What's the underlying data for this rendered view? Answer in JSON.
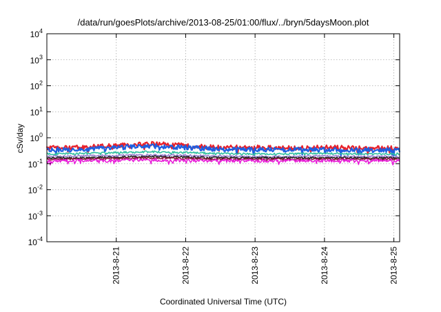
{
  "chart_data": {
    "type": "line",
    "title": "/data/run/goesPlots/archive/2013-08-25/01:00/flux/../bryn/5daysMoon.plot",
    "xlabel": "Coordinated Universal Time (UTC)",
    "ylabel": "cSv/day",
    "x_range": [
      "2013-08-20 00:00",
      "2013-08-25 02:00"
    ],
    "x_ticks": [
      "2013-8-21",
      "2013-8-22",
      "2013-8-23",
      "2013-8-24",
      "2013-8-25"
    ],
    "y_scale": "log",
    "ylim": [
      0.0001,
      10000
    ],
    "y_ticks": [
      {
        "base": "10",
        "exp": "-4"
      },
      {
        "base": "10",
        "exp": "-3"
      },
      {
        "base": "10",
        "exp": "-2"
      },
      {
        "base": "10",
        "exp": "-1"
      },
      {
        "base": "10",
        "exp": "0"
      },
      {
        "base": "10",
        "exp": "1"
      },
      {
        "base": "10",
        "exp": "2"
      },
      {
        "base": "10",
        "exp": "3"
      },
      {
        "base": "10",
        "exp": "4"
      }
    ],
    "grid": true,
    "series": [
      {
        "color": "#e8202a",
        "x": [
          "2013-08-20 00:00",
          "2013-08-20 12:00",
          "2013-08-21 00:00",
          "2013-08-21 12:00",
          "2013-08-22 00:00",
          "2013-08-22 12:00",
          "2013-08-23 00:00",
          "2013-08-23 12:00",
          "2013-08-24 00:00",
          "2013-08-24 12:00",
          "2013-08-25 00:00",
          "2013-08-25 02:00"
        ],
        "y": [
          0.4,
          0.42,
          0.5,
          0.58,
          0.5,
          0.42,
          0.42,
          0.4,
          0.42,
          0.4,
          0.4,
          0.4
        ]
      },
      {
        "color": "#1f5fe0",
        "x": [
          "2013-08-20 00:00",
          "2013-08-20 12:00",
          "2013-08-21 00:00",
          "2013-08-21 12:00",
          "2013-08-22 00:00",
          "2013-08-22 12:00",
          "2013-08-23 00:00",
          "2013-08-23 12:00",
          "2013-08-24 00:00",
          "2013-08-24 12:00",
          "2013-08-25 00:00",
          "2013-08-25 02:00"
        ],
        "y": [
          0.34,
          0.36,
          0.42,
          0.48,
          0.42,
          0.36,
          0.35,
          0.34,
          0.36,
          0.34,
          0.34,
          0.34
        ]
      },
      {
        "color": "#2fbfa0",
        "x": [
          "2013-08-20 00:00",
          "2013-08-20 12:00",
          "2013-08-21 00:00",
          "2013-08-21 12:00",
          "2013-08-22 00:00",
          "2013-08-22 12:00",
          "2013-08-23 00:00",
          "2013-08-23 12:00",
          "2013-08-24 00:00",
          "2013-08-24 12:00",
          "2013-08-25 00:00",
          "2013-08-25 02:00"
        ],
        "y": [
          0.24,
          0.25,
          0.27,
          0.29,
          0.27,
          0.25,
          0.24,
          0.24,
          0.25,
          0.24,
          0.24,
          0.24
        ]
      },
      {
        "color": "#9c7fd0",
        "x": [
          "2013-08-20 00:00",
          "2013-08-20 12:00",
          "2013-08-21 00:00",
          "2013-08-21 12:00",
          "2013-08-22 00:00",
          "2013-08-22 12:00",
          "2013-08-23 00:00",
          "2013-08-23 12:00",
          "2013-08-24 00:00",
          "2013-08-24 12:00",
          "2013-08-25 00:00",
          "2013-08-25 02:00"
        ],
        "y": [
          0.19,
          0.2,
          0.21,
          0.22,
          0.21,
          0.2,
          0.19,
          0.19,
          0.2,
          0.19,
          0.19,
          0.19
        ]
      },
      {
        "color": "#222222",
        "x": [
          "2013-08-20 00:00",
          "2013-08-20 12:00",
          "2013-08-21 00:00",
          "2013-08-21 12:00",
          "2013-08-22 00:00",
          "2013-08-22 12:00",
          "2013-08-23 00:00",
          "2013-08-23 12:00",
          "2013-08-24 00:00",
          "2013-08-24 12:00",
          "2013-08-25 00:00",
          "2013-08-25 02:00"
        ],
        "y": [
          0.17,
          0.17,
          0.18,
          0.19,
          0.18,
          0.17,
          0.17,
          0.17,
          0.17,
          0.17,
          0.17,
          0.17
        ]
      },
      {
        "color": "#8b1a3a",
        "x": [
          "2013-08-20 00:00",
          "2013-08-20 12:00",
          "2013-08-21 00:00",
          "2013-08-21 12:00",
          "2013-08-22 00:00",
          "2013-08-22 12:00",
          "2013-08-23 00:00",
          "2013-08-23 12:00",
          "2013-08-24 00:00",
          "2013-08-24 12:00",
          "2013-08-25 00:00",
          "2013-08-25 02:00"
        ],
        "y": [
          0.15,
          0.15,
          0.16,
          0.17,
          0.16,
          0.15,
          0.15,
          0.15,
          0.15,
          0.15,
          0.15,
          0.15
        ]
      },
      {
        "color": "#e81fd8",
        "x": [
          "2013-08-20 00:00",
          "2013-08-20 12:00",
          "2013-08-21 00:00",
          "2013-08-21 12:00",
          "2013-08-22 00:00",
          "2013-08-22 12:00",
          "2013-08-23 00:00",
          "2013-08-23 12:00",
          "2013-08-24 00:00",
          "2013-08-24 12:00",
          "2013-08-25 00:00",
          "2013-08-25 02:00"
        ],
        "y": [
          0.13,
          0.13,
          0.13,
          0.14,
          0.13,
          0.13,
          0.13,
          0.13,
          0.13,
          0.13,
          0.13,
          0.13
        ]
      }
    ]
  }
}
